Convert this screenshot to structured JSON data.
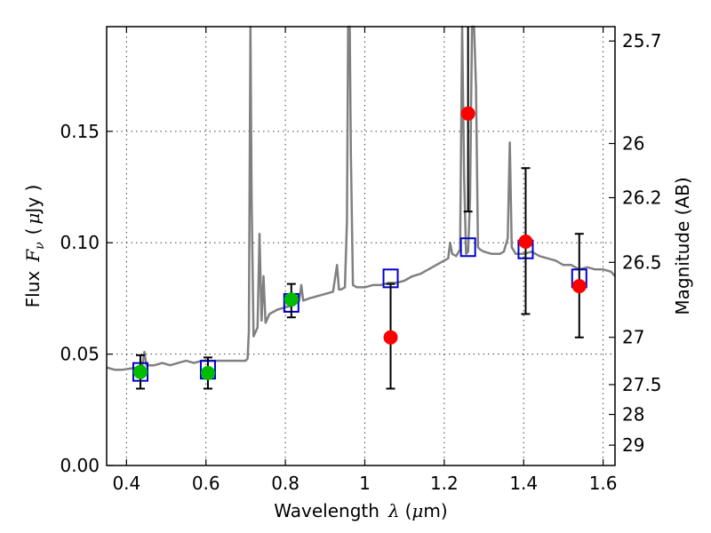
{
  "chart_data": {
    "type": "scatter",
    "xlabel": "Wavelength",
    "xlabel_symbol": "λ",
    "xlabel_unit_open": "(",
    "xlabel_unit_mu": "μ",
    "xlabel_unit_rest": "m)",
    "ylabel": "Flux",
    "ylabel_symbol": "F",
    "ylabel_symbol_sub": "ν",
    "ylabel_unit_open": "(",
    "ylabel_unit_mu": "μ",
    "ylabel_unit_rest": "Jy )",
    "y2label": "Magnitude (AB)",
    "xlim": [
      0.35,
      1.63
    ],
    "ylim": [
      0.0,
      0.197
    ],
    "grid": true,
    "x_ticks": [
      0.4,
      0.6,
      0.8,
      1.0,
      1.2,
      1.4,
      1.6
    ],
    "x_tick_labels": [
      "0.4",
      "0.6",
      "0.8",
      "1",
      "1.2",
      "1.4",
      "1.6"
    ],
    "y_ticks": [
      0.0,
      0.05,
      0.1,
      0.15
    ],
    "y_tick_labels": [
      "0.00",
      "0.05",
      "0.10",
      "0.15"
    ],
    "y2_ticks": [
      {
        "mag": 25.7,
        "label": "25.7"
      },
      {
        "mag": 26.0,
        "label": "26"
      },
      {
        "mag": 26.2,
        "label": "26.2"
      },
      {
        "mag": 26.5,
        "label": "26.5"
      },
      {
        "mag": 27.0,
        "label": "27"
      },
      {
        "mag": 27.5,
        "label": "27.5"
      },
      {
        "mag": 28.0,
        "label": "28"
      },
      {
        "mag": 29.0,
        "label": "29"
      }
    ],
    "colors": {
      "model": "#808080",
      "model_photometry": "#0000cc",
      "optical_points": "#00bb00",
      "nir_points": "#ff0000",
      "errorbars": "#000000"
    },
    "series": [
      {
        "kind": "line",
        "x": [
          0.35,
          0.37,
          0.39,
          0.41,
          0.43,
          0.44,
          0.445,
          0.45,
          0.47,
          0.49,
          0.51,
          0.53,
          0.55,
          0.57,
          0.59,
          0.61,
          0.63,
          0.65,
          0.67,
          0.69,
          0.7,
          0.705,
          0.708,
          0.712,
          0.715,
          0.72,
          0.725,
          0.73,
          0.735,
          0.74,
          0.745,
          0.75,
          0.76,
          0.78,
          0.8,
          0.82,
          0.835,
          0.84,
          0.845,
          0.86,
          0.88,
          0.9,
          0.92,
          0.93,
          0.935,
          0.94,
          0.95,
          0.955,
          0.958,
          0.962,
          0.965,
          0.97,
          0.98,
          1.0,
          1.02,
          1.04,
          1.06,
          1.08,
          1.1,
          1.12,
          1.14,
          1.16,
          1.18,
          1.2,
          1.21,
          1.215,
          1.22,
          1.23,
          1.24,
          1.245,
          1.25,
          1.255,
          1.26,
          1.265,
          1.27,
          1.275,
          1.28,
          1.285,
          1.29,
          1.3,
          1.32,
          1.34,
          1.35,
          1.36,
          1.365,
          1.37,
          1.38,
          1.4,
          1.42,
          1.44,
          1.46,
          1.48,
          1.5,
          1.52,
          1.54,
          1.56,
          1.58,
          1.6,
          1.62,
          1.63
        ],
        "y": [
          0.044,
          0.043,
          0.043,
          0.0435,
          0.044,
          0.045,
          0.051,
          0.045,
          0.045,
          0.046,
          0.045,
          0.046,
          0.047,
          0.046,
          0.047,
          0.047,
          0.047,
          0.047,
          0.047,
          0.047,
          0.047,
          0.048,
          0.06,
          0.197,
          0.12,
          0.058,
          0.06,
          0.062,
          0.104,
          0.065,
          0.085,
          0.064,
          0.068,
          0.07,
          0.071,
          0.072,
          0.074,
          0.081,
          0.074,
          0.075,
          0.076,
          0.077,
          0.078,
          0.09,
          0.079,
          0.079,
          0.08,
          0.11,
          0.197,
          0.197,
          0.14,
          0.081,
          0.08,
          0.08,
          0.081,
          0.081,
          0.082,
          0.082,
          0.083,
          0.085,
          0.086,
          0.088,
          0.09,
          0.092,
          0.093,
          0.1,
          0.095,
          0.094,
          0.097,
          0.197,
          0.13,
          0.095,
          0.096,
          0.12,
          0.197,
          0.197,
          0.17,
          0.098,
          0.097,
          0.096,
          0.095,
          0.095,
          0.096,
          0.102,
          0.145,
          0.098,
          0.095,
          0.095,
          0.096,
          0.094,
          0.093,
          0.092,
          0.09,
          0.09,
          0.088,
          0.089,
          0.088,
          0.088,
          0.087,
          0.085
        ]
      },
      {
        "kind": "squares",
        "x": [
          0.435,
          0.605,
          0.815,
          1.065,
          1.26,
          1.405,
          1.54
        ],
        "y": [
          0.042,
          0.043,
          0.073,
          0.084,
          0.098,
          0.097,
          0.084
        ]
      },
      {
        "kind": "points",
        "x": [
          0.435,
          0.605,
          0.815
        ],
        "y": [
          0.042,
          0.0415,
          0.0745
        ],
        "yerr_low": [
          0.0345,
          0.0345,
          0.0665
        ],
        "yerr_high": [
          0.0495,
          0.0485,
          0.0815
        ]
      },
      {
        "kind": "points",
        "x": [
          1.065,
          1.26,
          1.405,
          1.54
        ],
        "y": [
          0.0575,
          0.158,
          0.1005,
          0.0805
        ],
        "yerr_low": [
          0.0345,
          0.114,
          0.068,
          0.0575
        ],
        "yerr_high": [
          0.0815,
          0.197,
          0.1335,
          0.104
        ]
      }
    ]
  }
}
